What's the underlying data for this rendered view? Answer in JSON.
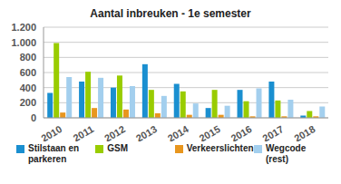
{
  "chart_data": {
    "type": "bar",
    "title": "Aantal inbreuken - 1e semester",
    "categories": [
      "2010",
      "2011",
      "2012",
      "2013",
      "2014",
      "2015",
      "2016",
      "2017",
      "2018"
    ],
    "series": [
      {
        "name": "Stilstaan en parkeren",
        "color": "#1a8fd0",
        "values": [
          330,
          480,
          400,
          710,
          450,
          130,
          370,
          480,
          30
        ]
      },
      {
        "name": "GSM",
        "color": "#99cc00",
        "values": [
          990,
          610,
          560,
          370,
          350,
          370,
          220,
          230,
          90
        ]
      },
      {
        "name": "Verkeerslichten",
        "color": "#e8961e",
        "values": [
          70,
          130,
          110,
          60,
          40,
          40,
          20,
          20,
          20
        ]
      },
      {
        "name": "Wegcode (rest)",
        "color": "#a3cfee",
        "values": [
          540,
          530,
          420,
          290,
          190,
          160,
          390,
          240,
          150
        ]
      }
    ],
    "ylim": [
      0,
      1200
    ],
    "yticks": [
      0,
      200,
      400,
      600,
      800,
      {
        "value": 1000,
        "label": "1.000"
      },
      {
        "value": 1200,
        "label": "1.200"
      }
    ],
    "grid": true,
    "legend": "bottom"
  }
}
